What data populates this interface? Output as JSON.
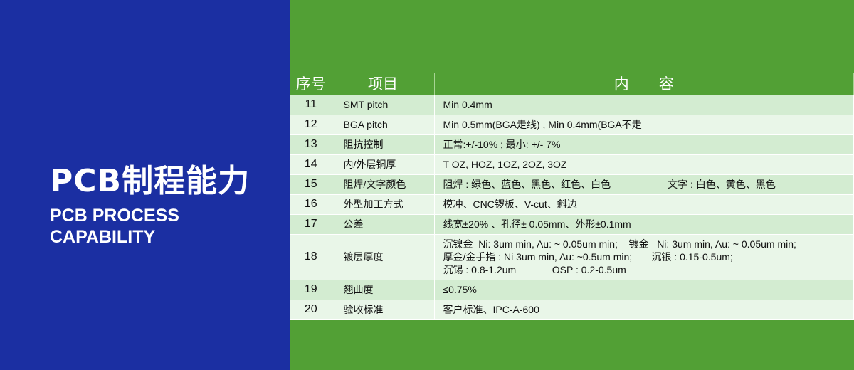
{
  "left": {
    "title_cn": "PCB制程能力",
    "title_en_1": "PCB PROCESS",
    "title_en_2": "CAPABILITY"
  },
  "table": {
    "headers": [
      "序号",
      "项目",
      "内　　容"
    ],
    "rows": [
      {
        "no": "11",
        "item": "SMT pitch",
        "content": "Min 0.4mm"
      },
      {
        "no": "12",
        "item": "BGA pitch",
        "content": "Min 0.5mm(BGA走线) , Min 0.4mm(BGA不走"
      },
      {
        "no": "13",
        "item": "阻抗控制",
        "content": "正常:+/-10% ; 最小: +/- 7%"
      },
      {
        "no": "14",
        "item": "内/外层铜厚",
        "content": "T OZ, HOZ, 1OZ, 2OZ, 3OZ"
      },
      {
        "no": "15",
        "item": "阻焊/文字颜色",
        "content": "阻焊 : 绿色、蓝色、黑色、红色、白色",
        "content_b": "文字 : 白色、黄色、黑色"
      },
      {
        "no": "16",
        "item": "外型加工方式",
        "content": "模冲、CNC锣板、V-cut、斜边"
      },
      {
        "no": "17",
        "item": "公差",
        "content": "线宽±20% 、孔径± 0.05mm、外形±0.1mm"
      },
      {
        "no": "18",
        "item": "镀层厚度",
        "content": "沉镍金  Ni: 3um min, Au: ~ 0.05um min;    镀金   Ni: 3um min, Au: ~ 0.05um min;",
        "content_b": "厚金/金手指 : Ni 3um min, Au: ~0.5um min;       沉银 : 0.15-0.5um;",
        "content_c": "沉锡 : 0.8-1.2um             OSP : 0.2-0.5um"
      },
      {
        "no": "19",
        "item": "翘曲度",
        "content": "≤0.75%"
      },
      {
        "no": "20",
        "item": "验收标准",
        "content": "客户标准、IPC-A-600"
      }
    ]
  },
  "colors": {
    "blue": "#1b2fa2",
    "green": "#52a035",
    "row_odd": "#d3ecd1",
    "row_even": "#e9f6e8"
  }
}
